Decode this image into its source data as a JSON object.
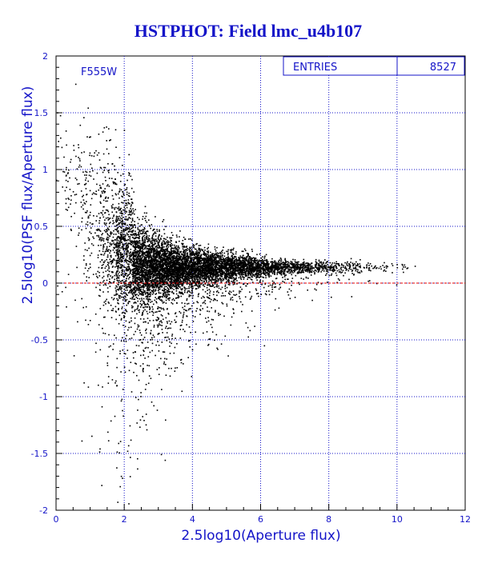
{
  "chart_data": {
    "type": "scatter",
    "title": "HSTPHOT: Field lmc_u4b107",
    "filter_label": "F555W",
    "xlabel": "2.5log10(Aperture flux)",
    "ylabel": "2.5log10(PSF flux/Aperture flux)",
    "xlim": [
      0,
      12
    ],
    "ylim": [
      -2,
      2
    ],
    "xticks": [
      "0",
      "2",
      "4",
      "6",
      "8",
      "10",
      "12"
    ],
    "yticks": [
      "2",
      "1.5",
      "1",
      "0.5",
      "0",
      "-0.5",
      "-1",
      "-1.5",
      "-2"
    ],
    "grid": true,
    "reference_line": {
      "y": 0
    },
    "stats": {
      "entries_label": "ENTRIES",
      "entries_value": "8527"
    },
    "colors": {
      "axes": "#1414c8",
      "grid": "#1414c8",
      "points": "#000000",
      "reference_line": "#e00000",
      "frame": "#000000"
    },
    "density_profile": [
      {
        "x": 0.1,
        "center": 1.1,
        "spread": 0.6,
        "weight": 25
      },
      {
        "x": 0.5,
        "center": 0.9,
        "spread": 0.75,
        "weight": 60
      },
      {
        "x": 1.0,
        "center": 0.65,
        "spread": 0.8,
        "weight": 150
      },
      {
        "x": 1.5,
        "center": 0.45,
        "spread": 0.75,
        "weight": 350
      },
      {
        "x": 2.0,
        "center": 0.3,
        "spread": 0.6,
        "weight": 750
      },
      {
        "x": 2.5,
        "center": 0.17,
        "spread": 0.35,
        "weight": 1100
      },
      {
        "x": 3.0,
        "center": 0.15,
        "spread": 0.25,
        "weight": 1150
      },
      {
        "x": 3.5,
        "center": 0.14,
        "spread": 0.2,
        "weight": 1050
      },
      {
        "x": 4.0,
        "center": 0.14,
        "spread": 0.17,
        "weight": 900
      },
      {
        "x": 4.5,
        "center": 0.14,
        "spread": 0.14,
        "weight": 750
      },
      {
        "x": 5.0,
        "center": 0.14,
        "spread": 0.12,
        "weight": 600
      },
      {
        "x": 5.5,
        "center": 0.14,
        "spread": 0.1,
        "weight": 470
      },
      {
        "x": 6.0,
        "center": 0.14,
        "spread": 0.09,
        "weight": 360
      },
      {
        "x": 6.5,
        "center": 0.14,
        "spread": 0.07,
        "weight": 270
      },
      {
        "x": 7.0,
        "center": 0.14,
        "spread": 0.06,
        "weight": 190
      },
      {
        "x": 7.5,
        "center": 0.14,
        "spread": 0.05,
        "weight": 130
      },
      {
        "x": 8.0,
        "center": 0.14,
        "spread": 0.05,
        "weight": 90
      },
      {
        "x": 8.5,
        "center": 0.14,
        "spread": 0.05,
        "weight": 60
      },
      {
        "x": 9.0,
        "center": 0.14,
        "spread": 0.05,
        "weight": 40
      },
      {
        "x": 9.5,
        "center": 0.14,
        "spread": 0.04,
        "weight": 20
      },
      {
        "x": 10.0,
        "center": 0.15,
        "spread": 0.04,
        "weight": 8
      },
      {
        "x": 10.3,
        "center": 0.15,
        "spread": 0.03,
        "weight": 3
      }
    ]
  }
}
